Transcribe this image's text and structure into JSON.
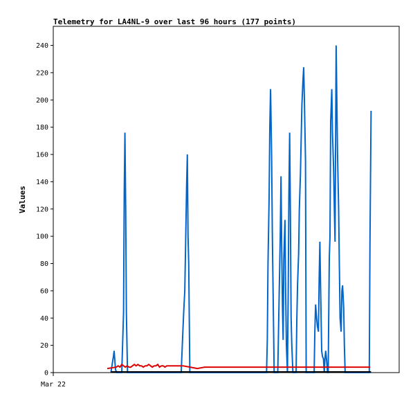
{
  "chart_data": {
    "type": "line",
    "title": "Telemetry for LA4NL-9 over last 96 hours (177 points)",
    "xlabel": "",
    "ylabel": "Values",
    "ylim": [
      0,
      254
    ],
    "xlim": [
      0,
      96
    ],
    "y_ticks": [
      "0",
      "20",
      "40",
      "60",
      "80",
      "100",
      "120",
      "140",
      "160",
      "180",
      "200",
      "220",
      "240"
    ],
    "x_ticks": [
      {
        "x": 0,
        "label": "Mar 22"
      }
    ],
    "grid": false,
    "legend": "none",
    "series": [
      {
        "color": "#0066cc",
        "x": [
          16.0,
          16.7,
          16.9,
          17.1,
          17.3,
          17.6,
          19.0,
          19.5,
          19.7,
          19.9,
          20.1,
          20.3,
          20.6,
          35.5,
          35.8,
          36.2,
          36.5,
          36.7,
          37.0,
          37.2,
          37.4,
          37.6,
          37.9,
          59.2,
          59.4,
          59.6,
          59.9,
          60.1,
          60.3,
          60.6,
          60.8,
          61.3,
          62.3,
          63.0,
          63.2,
          63.4,
          63.6,
          63.8,
          64.0,
          64.3,
          64.5,
          64.7,
          65.0,
          65.2,
          65.4,
          65.6,
          65.8,
          66.0,
          66.2,
          66.5,
          67.4,
          67.6,
          67.8,
          68.1,
          68.3,
          68.6,
          68.8,
          69.0,
          69.3,
          69.5,
          69.7,
          70.0,
          70.2,
          72.4,
          72.6,
          72.8,
          73.1,
          73.3,
          73.6,
          73.8,
          74.0,
          74.2,
          74.5,
          74.7,
          75.0,
          75.2,
          75.4,
          75.6,
          75.9,
          76.1,
          76.3,
          76.6,
          76.8,
          77.0,
          77.3,
          77.5,
          77.8,
          78.0,
          78.2,
          78.5,
          78.7,
          78.9,
          79.2,
          79.4,
          79.6,
          79.9,
          80.1,
          80.3,
          80.6,
          80.8,
          81.0,
          81.3,
          81.5,
          81.8,
          82.0,
          82.2,
          82.5,
          82.7,
          83.0,
          83.2,
          83.5,
          83.7,
          84.0,
          84.2,
          84.4,
          84.7,
          84.9,
          85.2,
          85.4,
          87.7,
          87.9,
          88.2
        ],
        "y": [
          0,
          12,
          16,
          8,
          2,
          0,
          0,
          44,
          132,
          176,
          120,
          44,
          0,
          0,
          20,
          44,
          60,
          88,
          136,
          160,
          100,
          80,
          0,
          0,
          24,
          80,
          128,
          180,
          208,
          160,
          100,
          0,
          0,
          100,
          144,
          92,
          48,
          24,
          84,
          112,
          60,
          20,
          0,
          60,
          130,
          176,
          120,
          40,
          20,
          0,
          0,
          40,
          64,
          88,
          120,
          146,
          170,
          196,
          214,
          224,
          200,
          156,
          0,
          0,
          30,
          50,
          40,
          34,
          30,
          70,
          96,
          60,
          16,
          12,
          10,
          0,
          10,
          16,
          8,
          0,
          0,
          84,
          100,
          184,
          208,
          176,
          150,
          120,
          96,
          240,
          200,
          160,
          120,
          80,
          40,
          30,
          60,
          64,
          48,
          20,
          0,
          0,
          0,
          0,
          0,
          0,
          0,
          0,
          0,
          0,
          0,
          0,
          0,
          0,
          0,
          0,
          0,
          0,
          0,
          0,
          96,
          192
        ]
      },
      {
        "color": "#dd0000",
        "x": [
          15.0,
          17.5,
          18.0,
          18.5,
          19.0,
          19.5,
          20.0,
          20.5,
          21.0,
          21.5,
          22.0,
          22.5,
          23.0,
          23.5,
          24.0,
          24.5,
          25.0,
          25.5,
          26.0,
          26.5,
          27.0,
          27.5,
          28.0,
          28.5,
          29.0,
          29.5,
          30.0,
          30.5,
          31.0,
          31.5,
          32.0,
          32.5,
          33.0,
          33.5,
          34.0,
          34.5,
          35.0,
          36.0,
          38.0,
          40.0,
          42.0,
          44.0,
          46.0,
          48.0,
          50.0,
          52.0,
          54.0,
          56.0,
          58.0,
          60.0,
          62.0,
          64.0,
          66.0,
          68.0,
          70.0,
          72.0,
          74.0,
          76.0,
          78.0,
          80.0,
          82.0,
          84.0,
          86.0,
          88.0
        ],
        "y": [
          3,
          4,
          5,
          4,
          6,
          5,
          4,
          5,
          4,
          4,
          5,
          6,
          5,
          6,
          5,
          5,
          4,
          5,
          5,
          6,
          5,
          4,
          5,
          5,
          6,
          4,
          5,
          5,
          4,
          5,
          5,
          5,
          5,
          5,
          5,
          5,
          5,
          5,
          4,
          3,
          4,
          4,
          4,
          4,
          4,
          4,
          4,
          4,
          4,
          4,
          4,
          4,
          4,
          4,
          4,
          4,
          4,
          4,
          4,
          4,
          4,
          4,
          4,
          4
        ]
      },
      {
        "color": "#000000",
        "x": [
          16.0,
          88.2
        ],
        "y": [
          0.5,
          0.5
        ]
      }
    ]
  }
}
